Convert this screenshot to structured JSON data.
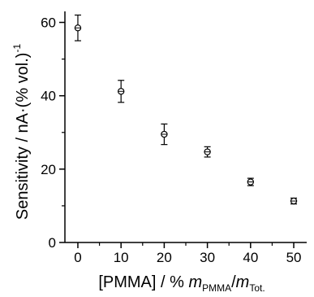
{
  "chart_data": {
    "type": "scatter",
    "xlabel": {
      "prefix": "[PMMA] / % ",
      "m1": "m",
      "m1_sub": "PMMA",
      "slash": "/",
      "m2": "m",
      "m2_sub": "Tot."
    },
    "ylabel": {
      "main": "Sensitivity / nA·(% vol.)",
      "sup": "-1"
    },
    "xlim": [
      -3,
      53
    ],
    "ylim": [
      0,
      63
    ],
    "xticks": [
      "0",
      "10",
      "20",
      "30",
      "40",
      "50"
    ],
    "yticks": [
      "0",
      "20",
      "40",
      "60"
    ],
    "x_minor_ticks": [
      5,
      15,
      25,
      35,
      45
    ],
    "y_minor_ticks": [
      10,
      30,
      50
    ],
    "series": [
      {
        "x": [
          0,
          10,
          20,
          30,
          40,
          50
        ],
        "y": [
          58.5,
          41.2,
          29.5,
          24.7,
          16.5,
          11.3
        ],
        "yerr": [
          3.5,
          3.0,
          2.8,
          1.4,
          1.0,
          0.8
        ]
      }
    ],
    "grid": false,
    "marker": "circle-cross",
    "color": "#000000"
  }
}
